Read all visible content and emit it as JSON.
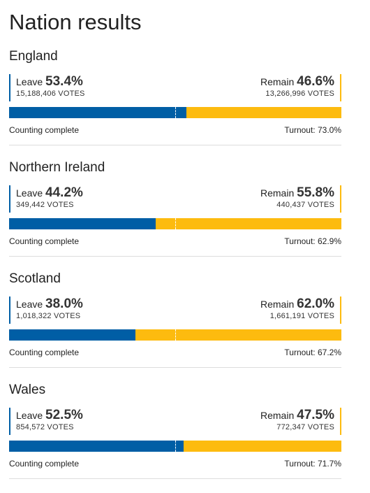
{
  "page": {
    "title": "Nation results"
  },
  "colors": {
    "leave": "#005ea5",
    "remain": "#fdbb0f",
    "divider": "#dddddd"
  },
  "nations": [
    {
      "name": "England",
      "leave_label": "Leave",
      "leave_pct": "53.4%",
      "leave_share": 0.534,
      "leave_votes": "15,188,406 VOTES",
      "remain_label": "Remain",
      "remain_pct": "46.6%",
      "remain_votes": "13,266,996 VOTES",
      "status": "Counting complete",
      "turnout": "Turnout: 73.0%"
    },
    {
      "name": "Northern Ireland",
      "leave_label": "Leave",
      "leave_pct": "44.2%",
      "leave_share": 0.442,
      "leave_votes": "349,442 VOTES",
      "remain_label": "Remain",
      "remain_pct": "55.8%",
      "remain_votes": "440,437 VOTES",
      "status": "Counting complete",
      "turnout": "Turnout: 62.9%"
    },
    {
      "name": "Scotland",
      "leave_label": "Leave",
      "leave_pct": "38.0%",
      "leave_share": 0.38,
      "leave_votes": "1,018,322 VOTES",
      "remain_label": "Remain",
      "remain_pct": "62.0%",
      "remain_votes": "1,661,191 VOTES",
      "status": "Counting complete",
      "turnout": "Turnout: 67.2%"
    },
    {
      "name": "Wales",
      "leave_label": "Leave",
      "leave_pct": "52.5%",
      "leave_share": 0.525,
      "leave_votes": "854,572 VOTES",
      "remain_label": "Remain",
      "remain_pct": "47.5%",
      "remain_votes": "772,347 VOTES",
      "status": "Counting complete",
      "turnout": "Turnout: 71.7%"
    }
  ]
}
